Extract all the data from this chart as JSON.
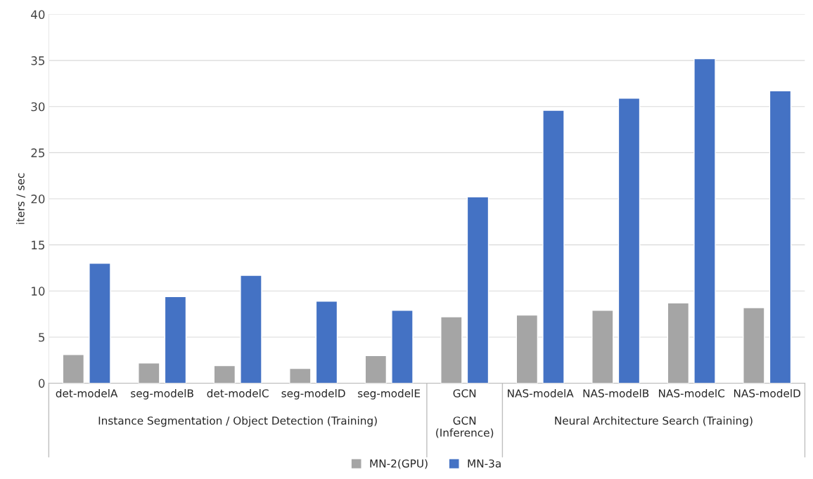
{
  "chart_data": {
    "type": "bar",
    "ylabel": "iters / sec",
    "categories": [
      "det-modelA",
      "seg-modelB",
      "det-modelC",
      "seg-modelD",
      "seg-modelE",
      "GCN",
      "NAS-modelA",
      "NAS-modelB",
      "NAS-modelC",
      "NAS-modelD"
    ],
    "series": [
      {
        "name": "MN-2(GPU)",
        "color": "#a5a5a5",
        "values": [
          3.1,
          2.2,
          1.9,
          1.6,
          3.0,
          7.2,
          7.4,
          7.9,
          8.7,
          8.2
        ]
      },
      {
        "name": "MN-3a",
        "color": "#4472c4",
        "values": [
          13.0,
          9.4,
          11.7,
          8.9,
          7.9,
          20.2,
          29.6,
          30.9,
          35.2,
          31.7
        ]
      }
    ],
    "ylim": [
      0,
      40
    ],
    "yticks": [
      0,
      5,
      10,
      15,
      20,
      25,
      30,
      35,
      40
    ],
    "grid": "y",
    "legend": "bottom",
    "annotations": [
      "Instance Segmentation / Object Detection (Training)",
      "GCN\n(Inference)",
      "Neural Architecture Search (Training)"
    ]
  }
}
